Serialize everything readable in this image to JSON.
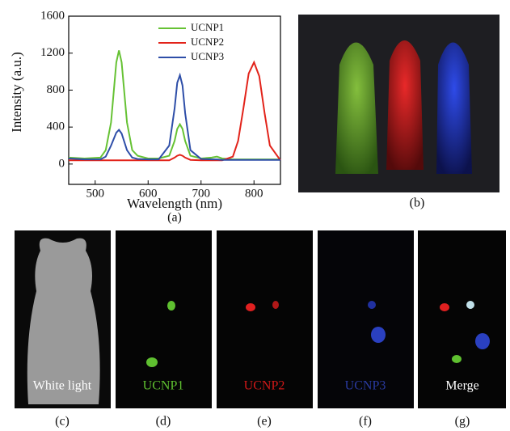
{
  "chart_data": {
    "type": "line",
    "x_label": "Wavelength (nm)",
    "y_label": "Intensity (a.u.)",
    "panel_label": "(a)",
    "x": [
      450,
      480,
      510,
      520,
      530,
      540,
      545,
      550,
      560,
      570,
      580,
      600,
      620,
      640,
      650,
      655,
      660,
      665,
      670,
      680,
      700,
      720,
      730,
      740,
      760,
      770,
      780,
      790,
      800,
      810,
      820,
      830,
      850
    ],
    "series": [
      {
        "name": "UCNP1",
        "color": "#66c234",
        "values": [
          70,
          60,
          70,
          150,
          450,
          1100,
          1230,
          1100,
          450,
          150,
          90,
          60,
          60,
          90,
          250,
          380,
          430,
          380,
          250,
          90,
          60,
          70,
          80,
          60,
          50,
          50,
          50,
          50,
          50,
          50,
          50,
          50,
          50
        ]
      },
      {
        "name": "UCNP2",
        "color": "#e2231a",
        "values": [
          40,
          40,
          40,
          40,
          40,
          40,
          40,
          40,
          40,
          40,
          40,
          40,
          40,
          40,
          70,
          90,
          100,
          90,
          70,
          45,
          40,
          40,
          40,
          40,
          80,
          250,
          600,
          980,
          1100,
          950,
          550,
          200,
          40
        ]
      },
      {
        "name": "UCNP3",
        "color": "#2e4ea8",
        "values": [
          60,
          50,
          50,
          80,
          200,
          340,
          370,
          330,
          150,
          70,
          55,
          50,
          50,
          200,
          600,
          880,
          960,
          850,
          550,
          150,
          55,
          50,
          50,
          45,
          45,
          45,
          45,
          45,
          45,
          45,
          45,
          45,
          45
        ]
      }
    ],
    "xlim": [
      450,
      850
    ],
    "xticks": [
      500,
      600,
      700,
      800
    ],
    "ylim": [
      -220,
      1600
    ],
    "yticks": [
      0,
      400,
      800,
      1200,
      1600
    ],
    "legend": "top"
  },
  "panels": [
    {
      "label": "(b)"
    },
    {
      "label": "(c)",
      "caption": "White light"
    },
    {
      "label": "(d)",
      "caption": "UCNP1"
    },
    {
      "label": "(e)",
      "caption": "UCNP2"
    },
    {
      "label": "(f)",
      "caption": "UCNP3"
    },
    {
      "label": "(g)",
      "caption": "Merge"
    }
  ]
}
